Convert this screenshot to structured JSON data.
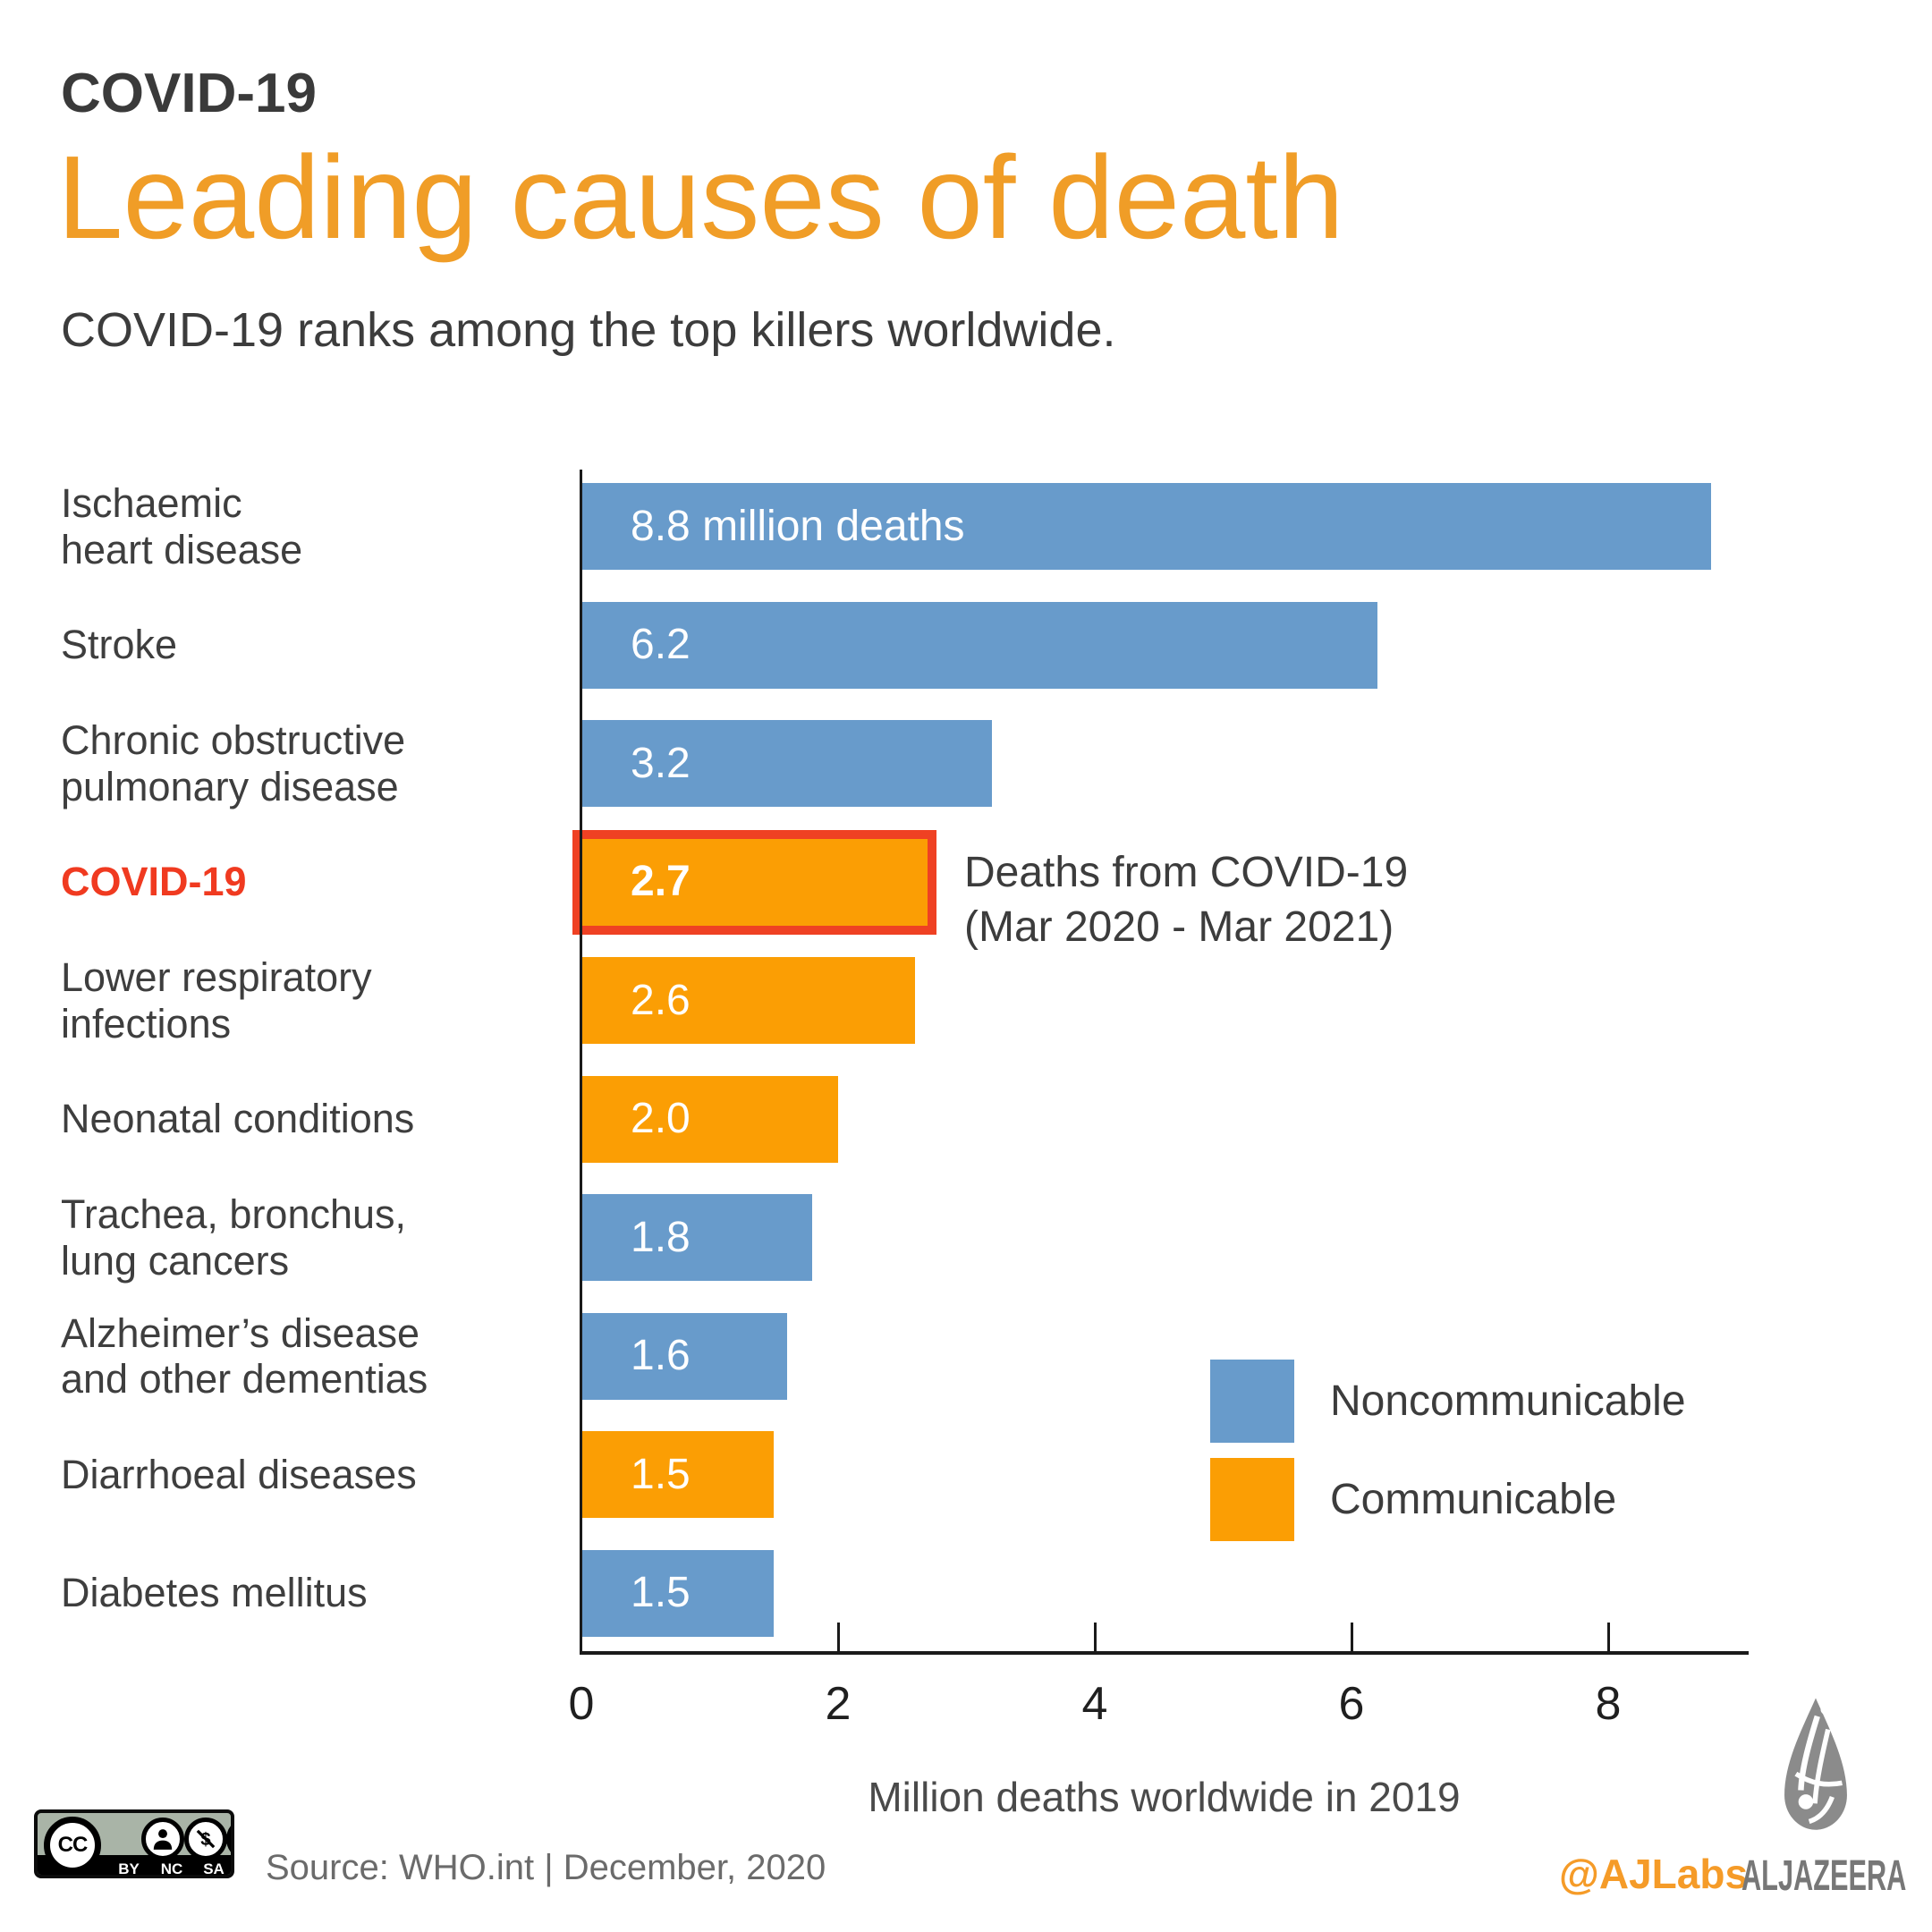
{
  "header": {
    "kicker": "COVID-19",
    "title": "Leading causes of death",
    "subtitle": "COVID-19 ranks among the top killers worldwide."
  },
  "chart_data": {
    "type": "bar",
    "orientation": "horizontal",
    "title": "Leading causes of death",
    "categories": [
      "Ischaemic\nheart disease",
      "Stroke",
      "Chronic obstructive\npulmonary disease",
      "COVID-19",
      "Lower respiratory\ninfections",
      "Neonatal conditions",
      "Trachea, bronchus,\nlung cancers",
      "Alzheimer’s disease\nand other dementias",
      "Diarrhoeal diseases",
      "Diabetes mellitus"
    ],
    "values": [
      8.8,
      6.2,
      3.2,
      2.7,
      2.6,
      2.0,
      1.8,
      1.6,
      1.5,
      1.5
    ],
    "bar_labels": [
      "8.8 million deaths",
      "6.2",
      "3.2",
      "2.7",
      "2.6",
      "2.0",
      "1.8",
      "1.6",
      "1.5",
      "1.5"
    ],
    "groups": [
      "noncommunicable",
      "noncommunicable",
      "noncommunicable",
      "communicable",
      "communicable",
      "communicable",
      "noncommunicable",
      "noncommunicable",
      "communicable",
      "noncommunicable"
    ],
    "highlight_index": 3,
    "annotation": {
      "line1": "Deaths from COVID-19",
      "line2": "(Mar 2020 - Mar 2021)"
    },
    "legend": [
      {
        "label": "Noncommunicable",
        "group": "noncommunicable"
      },
      {
        "label": "Communicable",
        "group": "communicable"
      }
    ],
    "legend_position": "right-middle",
    "xticks": [
      0,
      2,
      4,
      6,
      8
    ],
    "xlabel": "Million deaths worldwide in 2019",
    "xlim": [
      0,
      9.1
    ],
    "grid": false
  },
  "colors": {
    "noncommunicable": "#689BCB",
    "communicable": "#FB9E04",
    "highlight_border": "#EF4123",
    "highlight_label": "#F03A20",
    "title_accent": "#F09D27",
    "handle_orange": "#F59B28",
    "brand_gray": "#777777",
    "axis": "#1A1A1A"
  },
  "footer": {
    "source": "Source: WHO.int  | December, 2020",
    "handle": "@AJLabs",
    "brand": "ALJAZEERA",
    "license": {
      "badge_label": "CC",
      "terms": [
        "BY",
        "NC",
        "SA"
      ]
    }
  }
}
